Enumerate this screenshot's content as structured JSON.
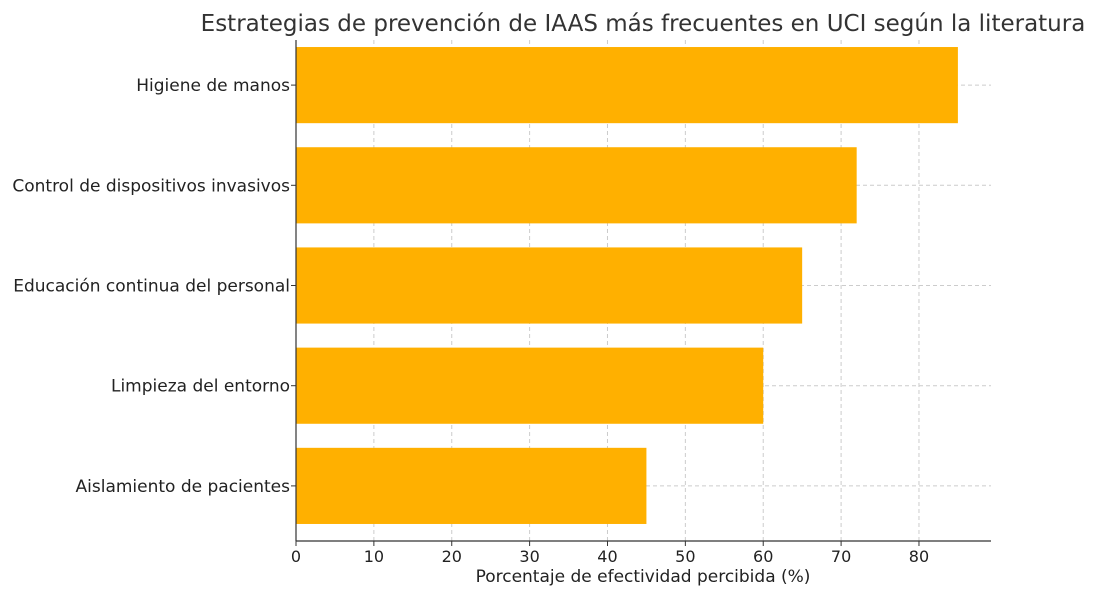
{
  "chart_data": {
    "type": "bar",
    "orientation": "horizontal",
    "title": "Estrategias de prevención de IAAS más frecuentes en UCI según la literatura",
    "xlabel": "Porcentaje de efectividad percibida (%)",
    "ylabel": "",
    "categories": [
      "Higiene de manos",
      "Control de dispositivos invasivos",
      "Educación continua del personal",
      "Limpieza del entorno",
      "Aislamiento de pacientes"
    ],
    "values": [
      85,
      72,
      65,
      60,
      45
    ],
    "xlim": [
      0,
      89.25
    ],
    "xticks": [
      0,
      10,
      20,
      30,
      40,
      50,
      60,
      70,
      80
    ],
    "grid": true,
    "legend": "none",
    "bar_color": "#FFB000"
  }
}
